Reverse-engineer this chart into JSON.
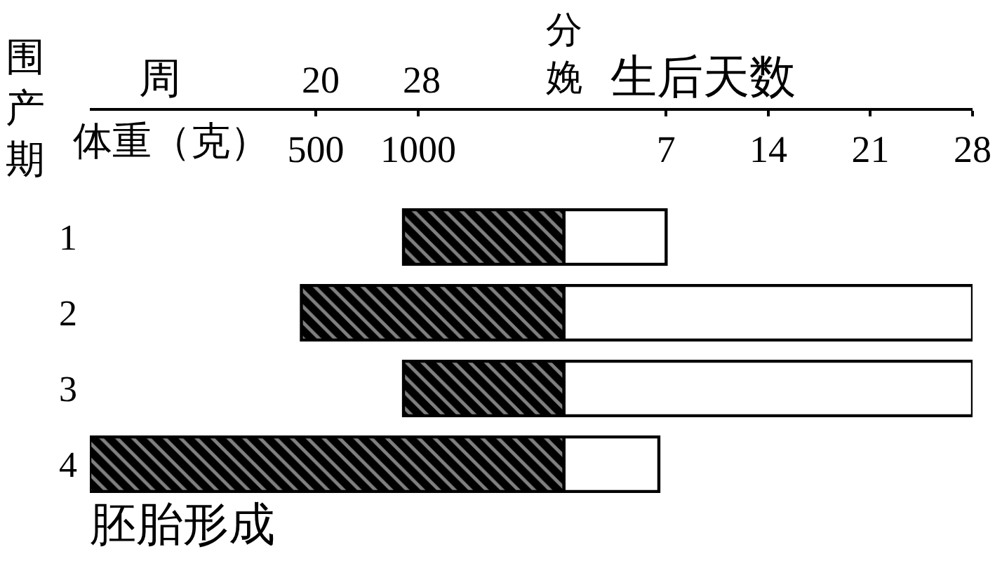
{
  "chart_data": {
    "type": "bar",
    "orientation": "horizontal",
    "stacked": true,
    "ylabel": "围产期",
    "xlabel": "生后天数",
    "x2label": "体重（克）",
    "annotations": [
      "分娩",
      "周",
      "20",
      "28",
      {
        "text": "胚胎形成",
        "x": -32.5,
        "y": "4"
      }
    ],
    "categories": [
      "1",
      "2",
      "3",
      "4"
    ],
    "series": [
      {
        "color": "#000000",
        "values": [
          -11,
          -18,
          -11,
          -32.5
        ]
      },
      {
        "color": "#ffffff",
        "values": [
          7,
          28,
          28,
          6.5
        ]
      }
    ],
    "xlim": [
      -32.5,
      28
    ],
    "xticks": [
      7,
      14,
      21,
      28
    ],
    "x2lim": [
      -603,
      3705
    ],
    "x2ticks": [
      500,
      1000
    ]
  }
}
